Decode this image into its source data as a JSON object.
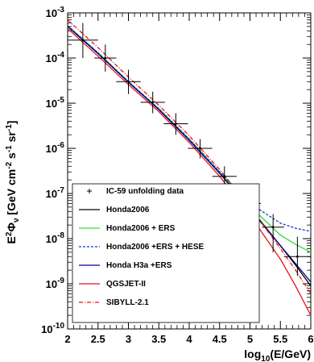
{
  "chart_data": {
    "type": "line",
    "xlabel": "log10(E/GeV)",
    "ylabel": "E2 Φν [GeV cm-2 s-1 sr-1]",
    "xlim": [
      2,
      6
    ],
    "ylim": [
      1e-10,
      0.001
    ],
    "yscale": "log",
    "x_ticks": [
      "2",
      "2.5",
      "3",
      "3.5",
      "4",
      "4.5",
      "5",
      "5.5",
      "6"
    ],
    "y_ticks": [
      "10-10",
      "10-9",
      "10-8",
      "10-7",
      "10-6",
      "10-5",
      "10-4",
      "10-3"
    ],
    "grid": false,
    "legend_position": "lower-left",
    "data_points": {
      "name": "IC-59 unfolding data",
      "color": "#000000",
      "points": [
        {
          "x": 2.25,
          "y": 0.00025,
          "xerr": 0.25,
          "ylo": 0.0001,
          "yhi": 0.0006
        },
        {
          "x": 2.62,
          "y": 0.0001,
          "xerr": 0.18,
          "ylo": 5e-05,
          "yhi": 0.0002
        },
        {
          "x": 3.0,
          "y": 3e-05,
          "xerr": 0.2,
          "ylo": 1.6e-05,
          "yhi": 5.5e-05
        },
        {
          "x": 3.4,
          "y": 1.05e-05,
          "xerr": 0.2,
          "ylo": 6e-06,
          "yhi": 1.8e-05
        },
        {
          "x": 3.78,
          "y": 3.5e-06,
          "xerr": 0.2,
          "ylo": 2e-06,
          "yhi": 6e-06
        },
        {
          "x": 4.18,
          "y": 1e-06,
          "xerr": 0.2,
          "ylo": 6e-07,
          "yhi": 1.6e-06
        },
        {
          "x": 4.58,
          "y": 2.4e-07,
          "xerr": 0.2,
          "ylo": 1.4e-07,
          "yhi": 4e-07
        },
        {
          "x": 4.98,
          "y": 6e-08,
          "xerr": 0.2,
          "ylo": 3e-08,
          "yhi": 1.2e-07
        },
        {
          "x": 5.38,
          "y": 1.8e-08,
          "xerr": 0.18,
          "ylo": 5e-09,
          "yhi": 3.5e-08
        },
        {
          "x": 5.78,
          "y": 4e-09,
          "xerr": 0.22,
          "ylo": 1.5e-09,
          "yhi": 1.1e-08
        }
      ]
    },
    "series": [
      {
        "name": "Honda2006",
        "color": "#000000",
        "dash": "solid",
        "x": [
          2,
          2.5,
          3,
          3.5,
          4,
          4.5,
          5,
          5.5,
          5.75,
          6
        ],
        "y": [
          0.00052,
          0.00013,
          3e-05,
          7.5e-06,
          1.6e-06,
          3e-07,
          4.8e-08,
          7e-09,
          2.6e-09,
          9e-10
        ]
      },
      {
        "name": "Honda2006 + ERS",
        "color": "#33dd33",
        "dash": "solid",
        "x": [
          2,
          2.5,
          3,
          3.5,
          4,
          4.5,
          5,
          5.5,
          5.75,
          6
        ],
        "y": [
          0.00052,
          0.00013,
          3e-05,
          7.5e-06,
          1.6e-06,
          3e-07,
          5.2e-08,
          1.2e-08,
          7.5e-09,
          5e-09
        ]
      },
      {
        "name": "Honda2006 +ERS + HESE",
        "color": "#1133cc",
        "dash": "dashed",
        "x": [
          2,
          2.5,
          3,
          3.5,
          4,
          4.5,
          5,
          5.5,
          5.75,
          6
        ],
        "y": [
          0.00052,
          0.00013,
          3e-05,
          7.5e-06,
          1.6e-06,
          3e-07,
          6e-08,
          2.2e-08,
          1.7e-08,
          1.45e-08
        ]
      },
      {
        "name": "Honda H3a +ERS",
        "color": "#00008b",
        "dash": "solid",
        "x": [
          2,
          2.5,
          3,
          3.5,
          4,
          4.5,
          5,
          5.5,
          5.75,
          6
        ],
        "y": [
          0.0005,
          0.000125,
          2.9e-05,
          7.2e-06,
          1.5e-06,
          2.8e-07,
          4.5e-08,
          7e-09,
          2.8e-09,
          1.1e-09
        ]
      },
      {
        "name": "QGSJET-II",
        "color": "#ee1111",
        "dash": "solid",
        "x": [
          2,
          2.5,
          3,
          3.5,
          4,
          4.5,
          5,
          5.5,
          5.75,
          6
        ],
        "y": [
          0.00045,
          0.00011,
          2.6e-05,
          6.5e-06,
          1.35e-06,
          2.4e-07,
          3.3e-08,
          3.5e-09,
          9e-10,
          2e-10
        ]
      },
      {
        "name": "SIBYLL-2.1",
        "color": "#ee1111",
        "dash": "dashdot",
        "x": [
          2,
          2.5,
          3,
          3.5,
          4,
          4.5,
          5,
          5.5,
          5.75,
          6
        ],
        "y": [
          0.0007,
          0.00017,
          3.8e-05,
          9e-06,
          1.9e-06,
          3.4e-07,
          5e-08,
          6e-09,
          2e-09,
          6e-10
        ]
      }
    ]
  }
}
